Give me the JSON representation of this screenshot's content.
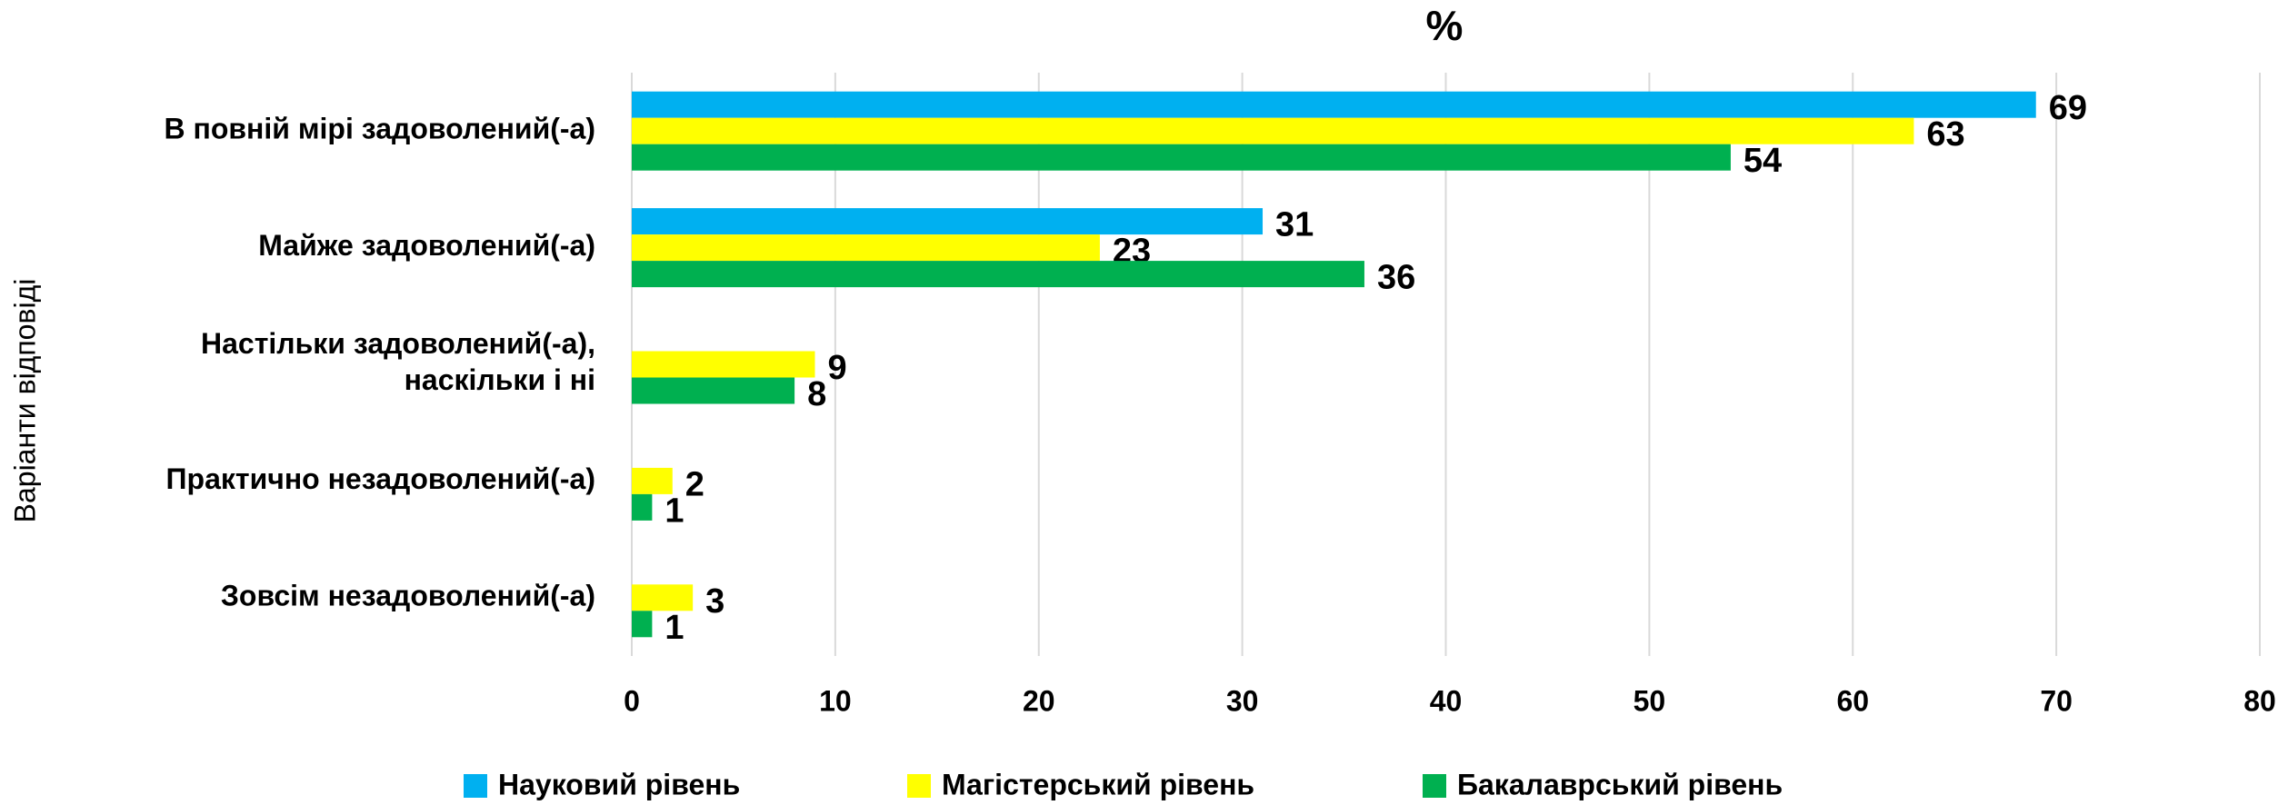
{
  "chart_data": {
    "type": "hbar",
    "title": "%",
    "y_label": "Варіанти відповіді",
    "categories": [
      "В повній мірі задоволений(-а)",
      "Майже задоволений(-а)",
      "Настільки задоволений(-а), наскільки і ні",
      "Практично незадоволений(-а)",
      "Зовсім незадоволений(-а)"
    ],
    "series": [
      {
        "name": "Науковий рівень",
        "color": "#00b0f0",
        "values": [
          69,
          31,
          null,
          null,
          null
        ]
      },
      {
        "name": "Магістерський рівень",
        "color": "#ffff00",
        "values": [
          63,
          23,
          9,
          2,
          3
        ]
      },
      {
        "name": "Бакалаврський рівень",
        "color": "#00b050",
        "values": [
          54,
          36,
          8,
          1,
          1
        ]
      }
    ],
    "xlim": [
      0,
      80
    ],
    "xticks": [
      0,
      10,
      20,
      30,
      40,
      50,
      60,
      70,
      80
    ],
    "grid": true,
    "legend": "bottom"
  }
}
